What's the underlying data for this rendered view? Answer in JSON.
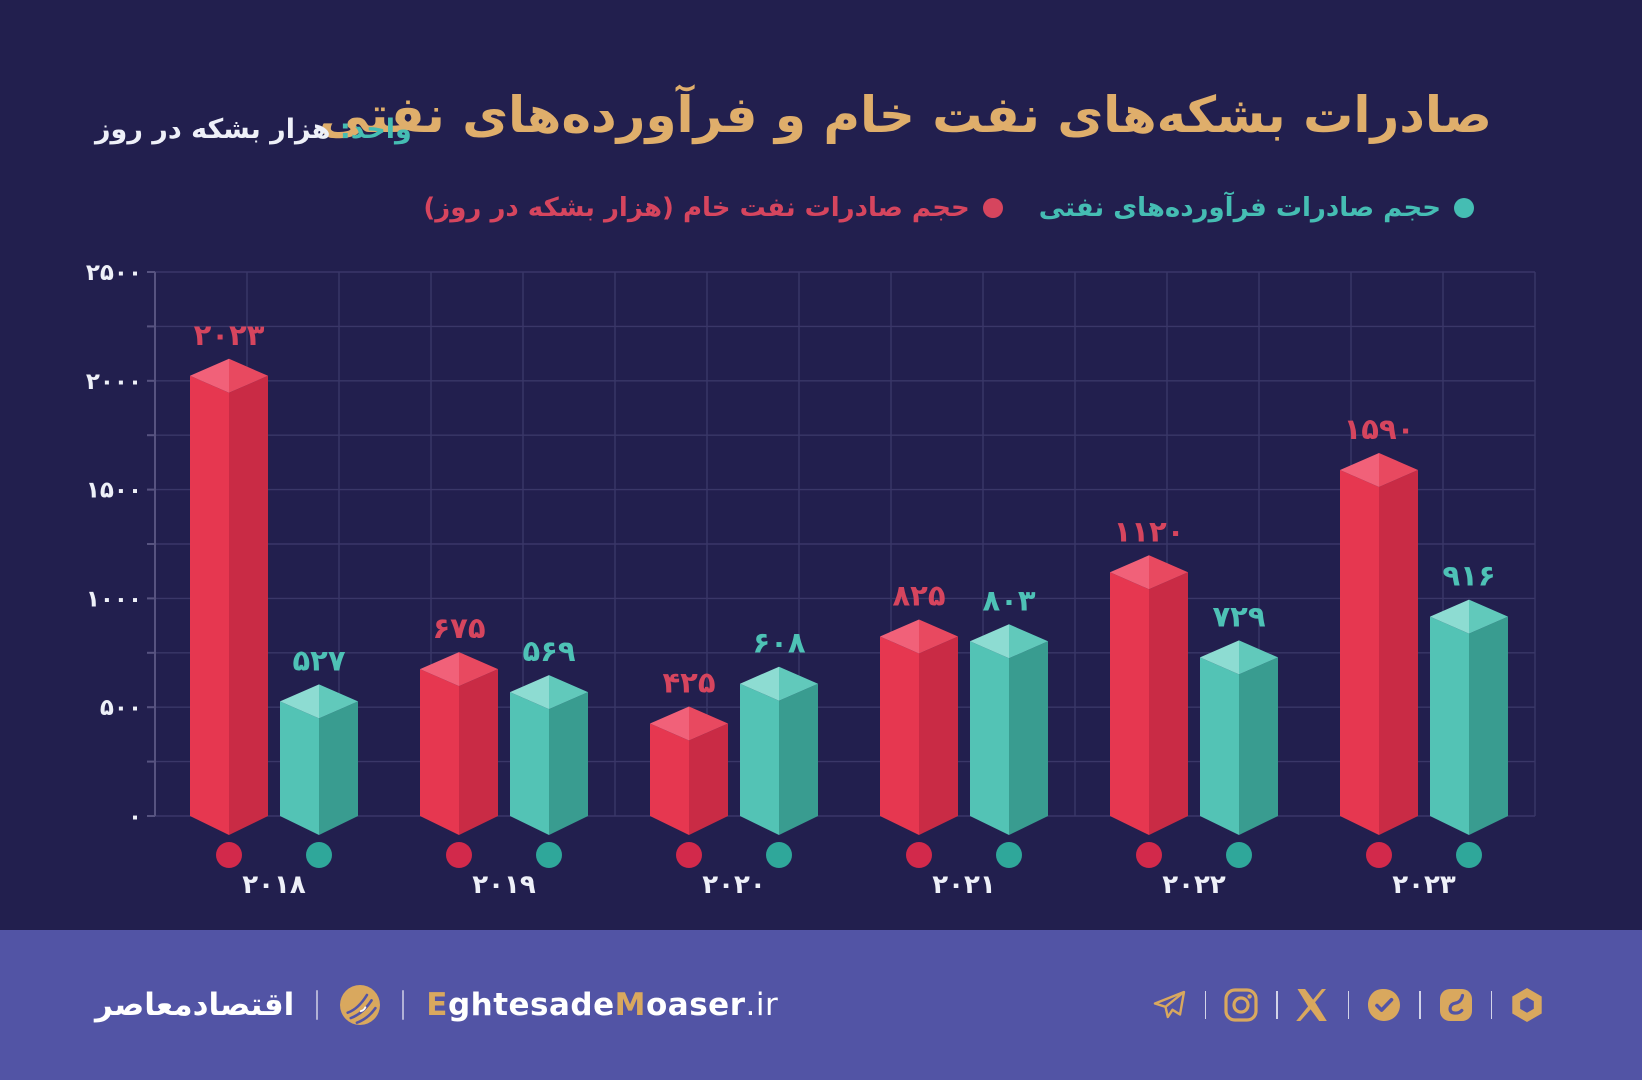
{
  "header": {
    "title": "صادرات بشکه‌های نفت خام و فرآورده‌های نفتی",
    "unit_label": "واحد:",
    "unit_value": "هزار بشکه در روز"
  },
  "legend": [
    {
      "label": "حجم صادرات فرآورده‌های نفتی",
      "series": "products"
    },
    {
      "label": "حجم صادرات نفت خام (هزار بشکه در روز)",
      "series": "crude"
    }
  ],
  "chart_data": {
    "type": "bar",
    "categories": [
      "۲۰۱۸",
      "۲۰۱۹",
      "۲۰۲۰",
      "۲۰۲۱",
      "۲۰۲۲",
      "۲۰۲۳"
    ],
    "categories_values": [
      2018,
      2019,
      2020,
      2021,
      2022,
      2023
    ],
    "series": [
      {
        "name": "حجم صادرات نفت خام (هزار بشکه در روز)",
        "key": "crude",
        "values": [
          2023,
          675,
          425,
          825,
          1120,
          1590
        ],
        "labels": [
          "۲۰۲۳",
          "۶۷۵",
          "۴۲۵",
          "۸۲۵",
          "۱۱۲۰",
          "۱۵۹۰"
        ]
      },
      {
        "name": "حجم صادرات فرآورده‌های نفتی",
        "key": "products",
        "values": [
          527,
          569,
          608,
          803,
          729,
          916
        ],
        "labels": [
          "۵۲۷",
          "۵۶۹",
          "۶۰۸",
          "۸۰۳",
          "۷۲۹",
          "۹۱۶"
        ]
      }
    ],
    "title": "صادرات بشکه‌های نفت خام و فرآورده‌های نفتی",
    "unit": "هزار بشکه در روز",
    "ylim": [
      0,
      2500
    ],
    "y_ticks": [
      {
        "value": 2500,
        "label": "۲۵۰۰"
      },
      {
        "value": 2000,
        "label": "۲۰۰۰"
      },
      {
        "value": 1500,
        "label": "۱۵۰۰"
      },
      {
        "value": 1000,
        "label": "۱۰۰۰"
      },
      {
        "value": 500,
        "label": "۵۰۰"
      },
      {
        "value": 0,
        "label": "۰"
      }
    ],
    "grid": true,
    "grid_step": 250,
    "legend_position": "top-right",
    "bar_style": "isometric-3d"
  },
  "colors": {
    "background": "#221f4e",
    "footer_background": "#5254a5",
    "title_gold": "#dfae6b",
    "icon_gold": "#d9a85e",
    "text_white": "#eef0f8",
    "grid": "#3a3768",
    "axis": "#575380",
    "crude": {
      "top_left": "#f16179",
      "top_right": "#e84960",
      "front_left": "#e63750",
      "front_right": "#c92b45",
      "label": "#d6455e",
      "dot": "#d2294b",
      "legend": "#d6455e"
    },
    "products": {
      "top_left": "#8ddcd2",
      "top_right": "#61c9bb",
      "front_left": "#53c3b5",
      "front_right": "#399c90",
      "label": "#4ec2b6",
      "dot": "#2fa79a",
      "legend": "#45bdb3"
    }
  },
  "footer": {
    "brand_fa": "اقتصادمعاصر",
    "site_segments": [
      {
        "text": "E",
        "gold": true
      },
      {
        "text": "ghtesade",
        "gold": false
      },
      {
        "text": "M",
        "gold": true
      },
      {
        "text": "oaser",
        "gold": false
      },
      {
        "text": ".ir",
        "gold": false,
        "tld": true
      }
    ],
    "social": [
      "telegram",
      "instagram",
      "x",
      "bale",
      "eitaa",
      "rubika"
    ]
  }
}
